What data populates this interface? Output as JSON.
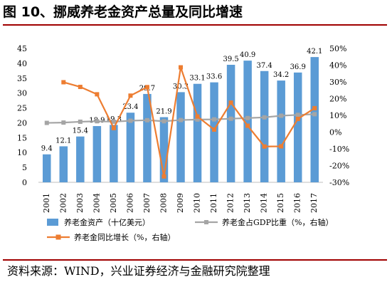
{
  "figure": {
    "title": "图 10、挪威养老金资产总量及同比增速",
    "source": "资料来源：WIND，兴业证券经济与金融研究院整理"
  },
  "colors": {
    "bar": "#5b9bd5",
    "gdp_line": "#a5a5a5",
    "yoy_line": "#ed7d31",
    "rule": "#a00000"
  },
  "chart_data": {
    "type": "bar",
    "title": "",
    "categories": [
      "2001",
      "2002",
      "2003",
      "2004",
      "2005",
      "2006",
      "2007",
      "2008",
      "2009",
      "2010",
      "2011",
      "2012",
      "2013",
      "2014",
      "2015",
      "2016",
      "2017"
    ],
    "series": [
      {
        "name": "养老金资产（十亿美元）",
        "type": "bar",
        "axis": "left",
        "values": [
          9.4,
          12.1,
          15.4,
          18.9,
          19.3,
          23.4,
          29.7,
          21.9,
          30.3,
          33.1,
          33.6,
          39.5,
          40.9,
          37.4,
          34.2,
          36.9,
          42.1
        ]
      },
      {
        "name": "养老金占GDP比重（%，右轴）",
        "type": "line",
        "axis": "right",
        "values": [
          5.5,
          5.7,
          6.2,
          6.5,
          6.2,
          6.8,
          7.1,
          6.5,
          7.2,
          7.5,
          7.6,
          8.0,
          8.4,
          8.8,
          9.8,
          10.3,
          10.7
        ]
      },
      {
        "name": "养老金同比增长（%，右轴）",
        "type": "line",
        "axis": "right",
        "values": [
          null,
          29.8,
          27.0,
          22.6,
          2.4,
          21.8,
          26.9,
          -26.5,
          38.7,
          9.3,
          1.5,
          17.6,
          3.8,
          -8.6,
          -8.5,
          7.9,
          14.3
        ]
      }
    ],
    "y_left": {
      "range": [
        0,
        45
      ],
      "ticks": [
        0,
        5,
        10,
        15,
        20,
        25,
        30,
        35,
        40,
        45
      ]
    },
    "y_right": {
      "range": [
        -30,
        50
      ],
      "ticks": [
        "-30%",
        "-20%",
        "-10%",
        "0%",
        "10%",
        "20%",
        "30%",
        "40%",
        "50%"
      ]
    },
    "grid": false,
    "legend_position": "bottom"
  }
}
